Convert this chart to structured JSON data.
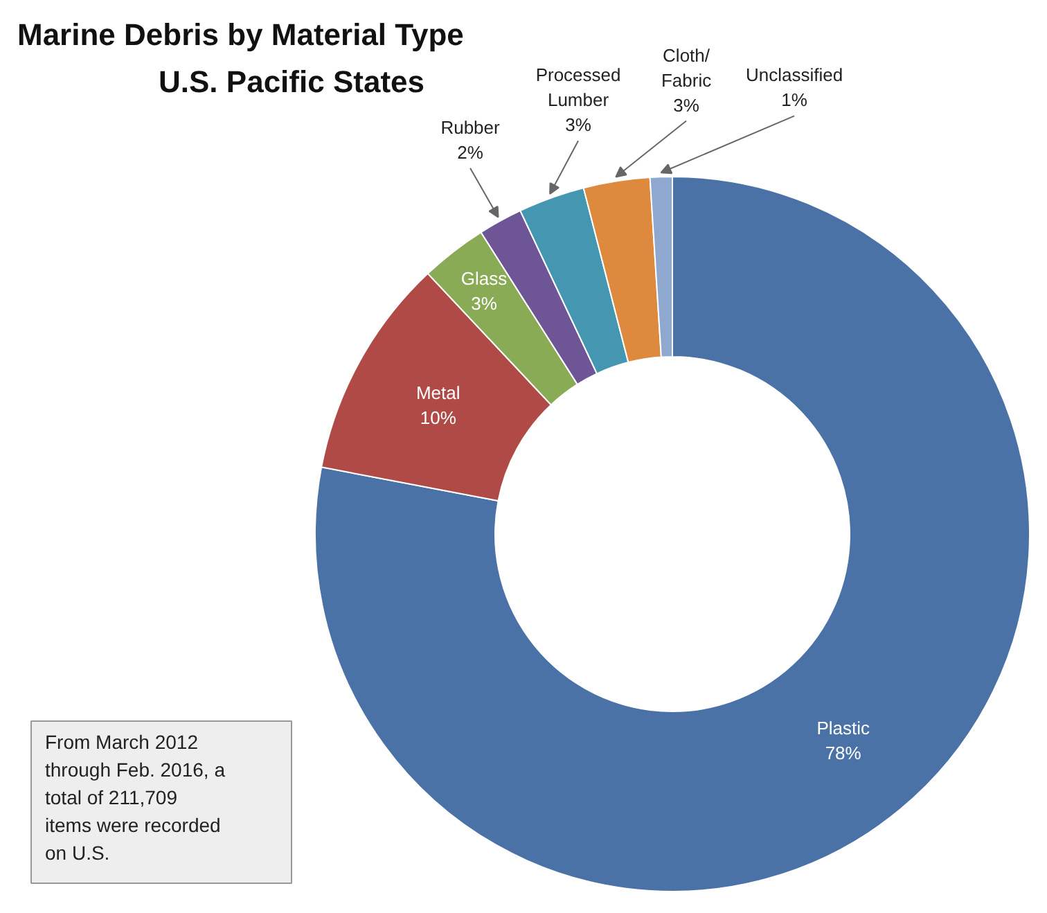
{
  "chart_data": {
    "type": "donut",
    "title": "Marine Debris by Material Type",
    "subtitle": "U.S. Pacific States",
    "categories": [
      "Plastic",
      "Metal",
      "Glass",
      "Rubber",
      "Processed Lumber",
      "Cloth/Fabric",
      "Unclassified"
    ],
    "values": [
      78,
      10,
      3,
      2,
      3,
      3,
      1
    ],
    "value_labels": [
      "78%",
      "10%",
      "3%",
      "2%",
      "3%",
      "3%",
      "1%"
    ],
    "colors": [
      "#4a72a6",
      "#b04a46",
      "#8aab55",
      "#6e5596",
      "#4596b0",
      "#dd8a3e",
      "#8fa8cf"
    ],
    "annotations": [
      "From March 2012 through Feb. 2016, a total of 211,709 items were recorded on U.S."
    ]
  }
}
